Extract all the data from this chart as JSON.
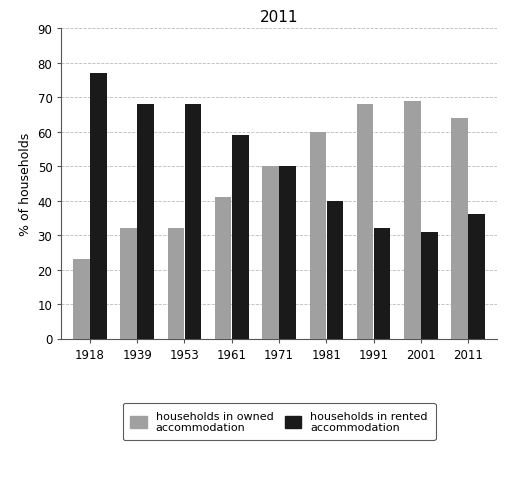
{
  "title": "2011",
  "years": [
    "1918",
    "1939",
    "1953",
    "1961",
    "1971",
    "1981",
    "1991",
    "2001",
    "2011"
  ],
  "owned": [
    23,
    32,
    32,
    41,
    50,
    60,
    68,
    69,
    64
  ],
  "rented": [
    77,
    68,
    68,
    59,
    50,
    40,
    32,
    31,
    36
  ],
  "owned_color": "#a0a0a0",
  "rented_color": "#1a1a1a",
  "ylabel": "% of households",
  "ylim": [
    0,
    90
  ],
  "yticks": [
    0,
    10,
    20,
    30,
    40,
    50,
    60,
    70,
    80,
    90
  ],
  "legend_owned": "households in owned\naccommodation",
  "legend_rented": "households in rented\naccommodation",
  "title_fontsize": 11,
  "axis_fontsize": 9,
  "tick_fontsize": 8.5,
  "legend_fontsize": 8
}
